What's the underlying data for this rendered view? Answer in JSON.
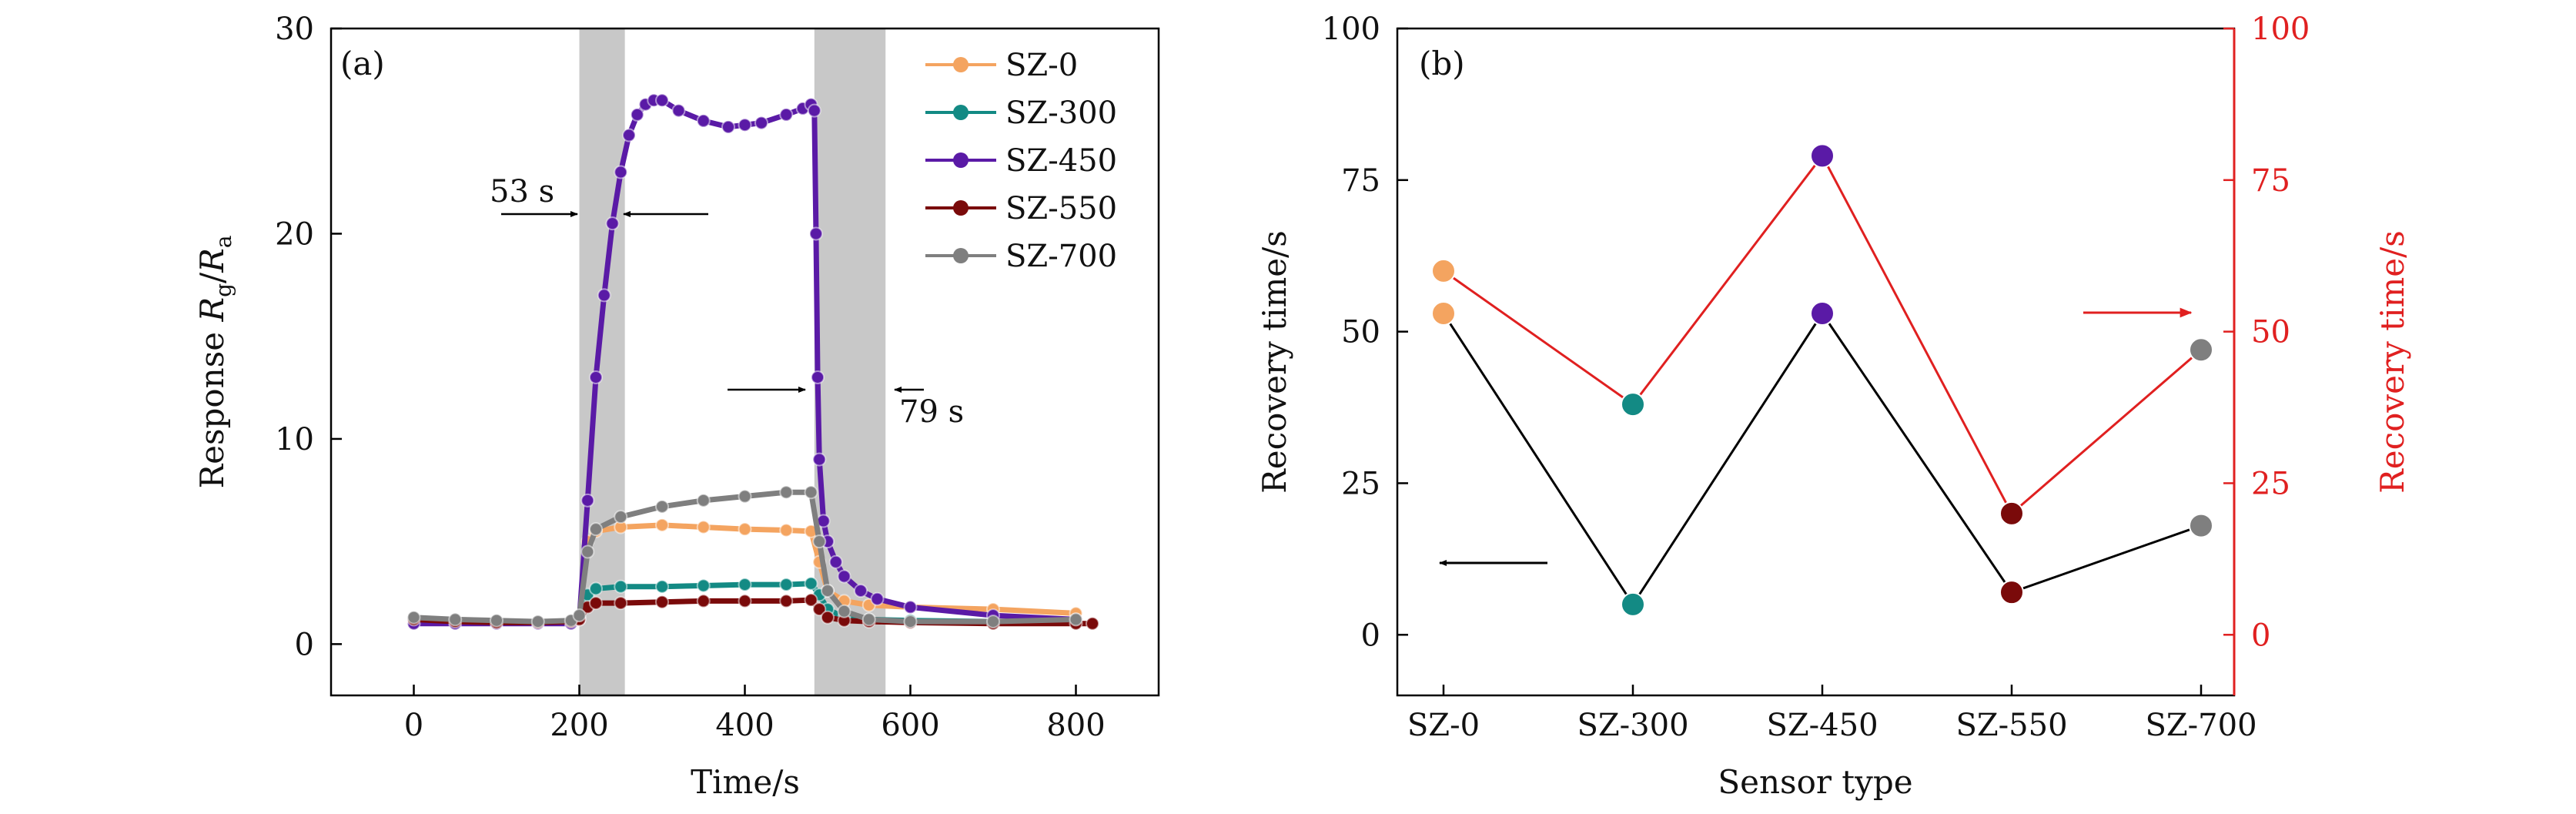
{
  "colors": {
    "SZ-0": "#f4a460",
    "SZ-300": "#138a84",
    "SZ-450": "#5a1aa6",
    "SZ-550": "#7a0a0a",
    "SZ-700": "#7f7f7f",
    "red_axis": "#e02020",
    "shade": "#c8c8c8"
  },
  "chart_data": [
    {
      "type": "line",
      "panel_label": "(a)",
      "xlabel": "Time/s",
      "ylabel_prefix": "Response ",
      "ylabel_math": "Rg/Ra",
      "xlim": [
        -100,
        900
      ],
      "ylim": [
        -2.5,
        30
      ],
      "xticks": [
        0,
        200,
        400,
        600,
        800
      ],
      "yticks": [
        0,
        10,
        20,
        30
      ],
      "grid": false,
      "legend": "top-right",
      "shaded_regions": [
        [
          200,
          255
        ],
        [
          484,
          570
        ]
      ],
      "annotations": [
        {
          "text": "53 s",
          "x": 137,
          "y": 21.9
        },
        {
          "text": "79 s",
          "x": 628,
          "y": 10.8
        }
      ],
      "series": [
        {
          "name": "SZ-0",
          "x": [
            0,
            50,
            100,
            150,
            190,
            200,
            210,
            220,
            250,
            300,
            350,
            400,
            450,
            480,
            490,
            500,
            520,
            550,
            600,
            700,
            800
          ],
          "y": [
            1.2,
            1.1,
            1.05,
            1.05,
            1.1,
            1.3,
            5.0,
            5.5,
            5.7,
            5.8,
            5.7,
            5.6,
            5.55,
            5.5,
            4.0,
            2.6,
            2.1,
            1.9,
            1.8,
            1.7,
            1.5
          ]
        },
        {
          "name": "SZ-300",
          "x": [
            0,
            50,
            100,
            150,
            190,
            200,
            210,
            220,
            250,
            300,
            350,
            400,
            450,
            480,
            490,
            500,
            520,
            550,
            600,
            700,
            800
          ],
          "y": [
            1.2,
            1.1,
            1.05,
            1.05,
            1.1,
            1.2,
            2.4,
            2.7,
            2.8,
            2.8,
            2.85,
            2.9,
            2.9,
            2.95,
            2.4,
            1.7,
            1.3,
            1.2,
            1.15,
            1.1,
            1.1
          ]
        },
        {
          "name": "SZ-450",
          "x": [
            0,
            50,
            100,
            150,
            190,
            200,
            210,
            220,
            230,
            240,
            250,
            260,
            270,
            280,
            290,
            300,
            320,
            350,
            380,
            400,
            420,
            450,
            470,
            480,
            484,
            486,
            488,
            490,
            495,
            500,
            510,
            520,
            540,
            560,
            600,
            700,
            800
          ],
          "y": [
            1.0,
            1.0,
            1.0,
            1.0,
            1.0,
            1.2,
            7.0,
            13.0,
            17.0,
            20.5,
            23.0,
            24.8,
            25.8,
            26.3,
            26.5,
            26.5,
            26.0,
            25.5,
            25.2,
            25.3,
            25.4,
            25.8,
            26.1,
            26.3,
            26.0,
            20.0,
            13.0,
            9.0,
            6.0,
            5.0,
            4.0,
            3.3,
            2.6,
            2.2,
            1.8,
            1.4,
            1.2
          ]
        },
        {
          "name": "SZ-550",
          "x": [
            0,
            50,
            100,
            150,
            190,
            200,
            210,
            220,
            250,
            300,
            350,
            400,
            450,
            480,
            490,
            500,
            520,
            550,
            600,
            700,
            800,
            820
          ],
          "y": [
            1.2,
            1.1,
            1.05,
            1.05,
            1.1,
            1.2,
            1.8,
            2.0,
            2.0,
            2.05,
            2.1,
            2.1,
            2.1,
            2.15,
            1.7,
            1.3,
            1.15,
            1.1,
            1.05,
            1.0,
            1.0,
            1.0
          ]
        },
        {
          "name": "SZ-700",
          "x": [
            0,
            50,
            100,
            150,
            190,
            200,
            210,
            220,
            250,
            300,
            350,
            400,
            450,
            480,
            490,
            500,
            520,
            550,
            600,
            700,
            800
          ],
          "y": [
            1.3,
            1.2,
            1.15,
            1.1,
            1.15,
            1.4,
            4.5,
            5.6,
            6.2,
            6.7,
            7.0,
            7.2,
            7.4,
            7.4,
            5.0,
            2.6,
            1.6,
            1.2,
            1.1,
            1.1,
            1.2
          ]
        }
      ]
    },
    {
      "type": "scatter",
      "panel_label": "(b)",
      "xlabel": "Sensor type",
      "ylabel": "Recovery time/s",
      "ylabel_right": "Recovery time/s",
      "categories": [
        "SZ-0",
        "SZ-300",
        "SZ-450",
        "SZ-550",
        "SZ-700"
      ],
      "ylim": [
        -10,
        100
      ],
      "yticks": [
        0,
        25,
        50,
        75,
        100
      ],
      "yticks_right": [
        0,
        25,
        50,
        75,
        100
      ],
      "grid": false,
      "series": [
        {
          "axis": "left",
          "color": "#000000",
          "values": [
            53,
            5,
            53,
            7,
            18
          ]
        },
        {
          "axis": "right",
          "color": "#e02020",
          "values": [
            60,
            38,
            79,
            20,
            47
          ]
        }
      ]
    }
  ]
}
